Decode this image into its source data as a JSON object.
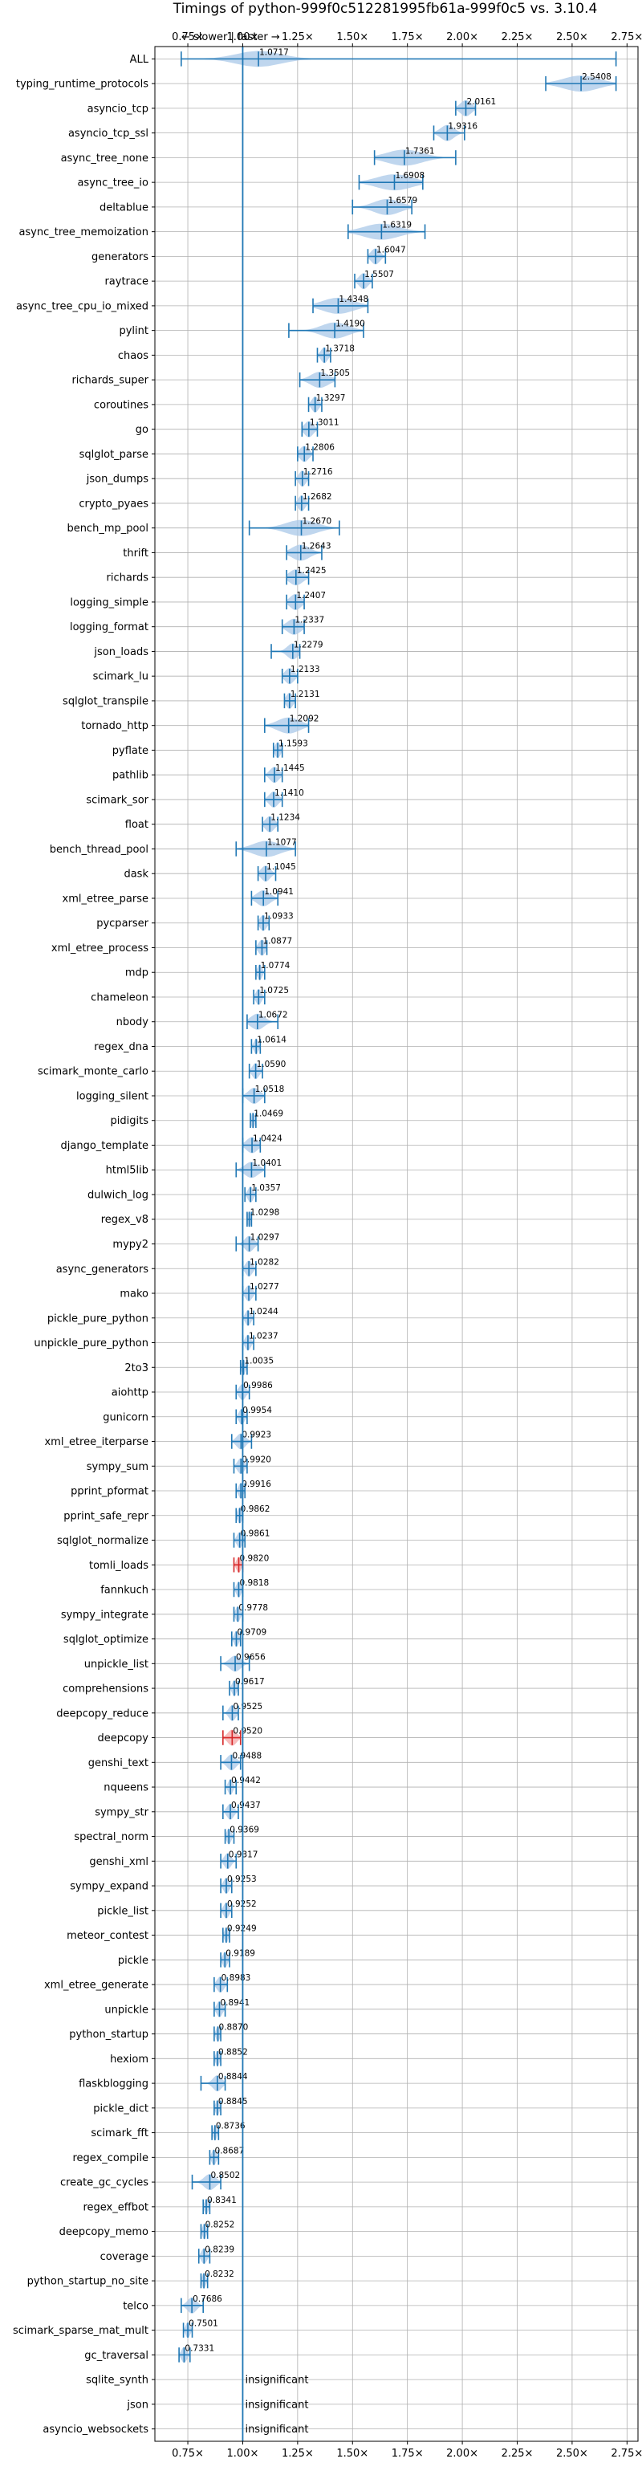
{
  "chart_data": {
    "type": "violin",
    "title": "Timings of python-999f0c512281995fb61a-999f0c5 vs. 3.10.4",
    "direction_note": "← slower | faster →",
    "xlim": [
      0.6,
      2.8
    ],
    "xticks": [
      0.75,
      1.0,
      1.25,
      1.5,
      1.75,
      2.0,
      2.25,
      2.5,
      2.75
    ],
    "xtick_labels": [
      "0.75×",
      "1.00×",
      "1.25×",
      "1.50×",
      "1.75×",
      "2.00×",
      "2.25×",
      "2.50×",
      "2.75×"
    ],
    "reference_line": 1.0,
    "insignificant_label": "insignificant",
    "benchmarks": [
      {
        "name": "ALL",
        "value": 1.0717,
        "min": 0.72,
        "max": 2.7,
        "spread": 0.1,
        "significant": true,
        "slower": false
      },
      {
        "name": "typing_runtime_protocols",
        "value": 2.5408,
        "min": 2.38,
        "max": 2.7,
        "spread": 0.08,
        "significant": true,
        "slower": false
      },
      {
        "name": "asyncio_tcp",
        "value": 2.0161,
        "min": 1.97,
        "max": 2.06,
        "spread": 0.025,
        "significant": true,
        "slower": false
      },
      {
        "name": "asyncio_tcp_ssl",
        "value": 1.9316,
        "min": 1.87,
        "max": 2.01,
        "spread": 0.03,
        "significant": true,
        "slower": false
      },
      {
        "name": "async_tree_none",
        "value": 1.7361,
        "min": 1.6,
        "max": 1.97,
        "spread": 0.08,
        "significant": true,
        "slower": false
      },
      {
        "name": "async_tree_io",
        "value": 1.6908,
        "min": 1.53,
        "max": 1.82,
        "spread": 0.08,
        "significant": true,
        "slower": false
      },
      {
        "name": "deltablue",
        "value": 1.6579,
        "min": 1.5,
        "max": 1.77,
        "spread": 0.06,
        "significant": true,
        "slower": false
      },
      {
        "name": "async_tree_memoization",
        "value": 1.6319,
        "min": 1.48,
        "max": 1.83,
        "spread": 0.08,
        "significant": true,
        "slower": false
      },
      {
        "name": "generators",
        "value": 1.6047,
        "min": 1.57,
        "max": 1.65,
        "spread": 0.02,
        "significant": true,
        "slower": false
      },
      {
        "name": "raytrace",
        "value": 1.5507,
        "min": 1.51,
        "max": 1.59,
        "spread": 0.02,
        "significant": true,
        "slower": false
      },
      {
        "name": "async_tree_cpu_io_mixed",
        "value": 1.4348,
        "min": 1.32,
        "max": 1.57,
        "spread": 0.07,
        "significant": true,
        "slower": false
      },
      {
        "name": "pylint",
        "value": 1.419,
        "min": 1.21,
        "max": 1.55,
        "spread": 0.06,
        "significant": true,
        "slower": false
      },
      {
        "name": "chaos",
        "value": 1.3718,
        "min": 1.34,
        "max": 1.4,
        "spread": 0.015,
        "significant": true,
        "slower": false
      },
      {
        "name": "richards_super",
        "value": 1.3505,
        "min": 1.26,
        "max": 1.42,
        "spread": 0.04,
        "significant": true,
        "slower": false
      },
      {
        "name": "coroutines",
        "value": 1.3297,
        "min": 1.3,
        "max": 1.36,
        "spread": 0.015,
        "significant": true,
        "slower": false
      },
      {
        "name": "go",
        "value": 1.3011,
        "min": 1.27,
        "max": 1.34,
        "spread": 0.02,
        "significant": true,
        "slower": false
      },
      {
        "name": "sqlglot_parse",
        "value": 1.2806,
        "min": 1.25,
        "max": 1.32,
        "spread": 0.02,
        "significant": true,
        "slower": false
      },
      {
        "name": "json_dumps",
        "value": 1.2716,
        "min": 1.24,
        "max": 1.3,
        "spread": 0.015,
        "significant": true,
        "slower": false
      },
      {
        "name": "crypto_pyaes",
        "value": 1.2682,
        "min": 1.24,
        "max": 1.3,
        "spread": 0.015,
        "significant": true,
        "slower": false
      },
      {
        "name": "bench_mp_pool",
        "value": 1.267,
        "min": 1.03,
        "max": 1.44,
        "spread": 0.07,
        "significant": true,
        "slower": false
      },
      {
        "name": "thrift",
        "value": 1.2643,
        "min": 1.2,
        "max": 1.36,
        "spread": 0.04,
        "significant": true,
        "slower": false
      },
      {
        "name": "richards",
        "value": 1.2425,
        "min": 1.2,
        "max": 1.3,
        "spread": 0.03,
        "significant": true,
        "slower": false
      },
      {
        "name": "logging_simple",
        "value": 1.2407,
        "min": 1.2,
        "max": 1.28,
        "spread": 0.025,
        "significant": true,
        "slower": false
      },
      {
        "name": "logging_format",
        "value": 1.2337,
        "min": 1.18,
        "max": 1.28,
        "spread": 0.03,
        "significant": true,
        "slower": false
      },
      {
        "name": "json_loads",
        "value": 1.2279,
        "min": 1.13,
        "max": 1.26,
        "spread": 0.025,
        "significant": true,
        "slower": false
      },
      {
        "name": "scimark_lu",
        "value": 1.2133,
        "min": 1.18,
        "max": 1.25,
        "spread": 0.02,
        "significant": true,
        "slower": false
      },
      {
        "name": "sqlglot_transpile",
        "value": 1.2131,
        "min": 1.19,
        "max": 1.24,
        "spread": 0.015,
        "significant": true,
        "slower": false
      },
      {
        "name": "tornado_http",
        "value": 1.2092,
        "min": 1.1,
        "max": 1.3,
        "spread": 0.05,
        "significant": true,
        "slower": false
      },
      {
        "name": "pyflate",
        "value": 1.1593,
        "min": 1.14,
        "max": 1.18,
        "spread": 0.012,
        "significant": true,
        "slower": false
      },
      {
        "name": "pathlib",
        "value": 1.1445,
        "min": 1.1,
        "max": 1.18,
        "spread": 0.02,
        "significant": true,
        "slower": false
      },
      {
        "name": "scimark_sor",
        "value": 1.141,
        "min": 1.1,
        "max": 1.18,
        "spread": 0.02,
        "significant": true,
        "slower": false
      },
      {
        "name": "float",
        "value": 1.1234,
        "min": 1.09,
        "max": 1.16,
        "spread": 0.02,
        "significant": true,
        "slower": false
      },
      {
        "name": "bench_thread_pool",
        "value": 1.1077,
        "min": 0.97,
        "max": 1.24,
        "spread": 0.06,
        "significant": true,
        "slower": false
      },
      {
        "name": "dask",
        "value": 1.1045,
        "min": 1.07,
        "max": 1.15,
        "spread": 0.02,
        "significant": true,
        "slower": false
      },
      {
        "name": "xml_etree_parse",
        "value": 1.0941,
        "min": 1.04,
        "max": 1.16,
        "spread": 0.03,
        "significant": true,
        "slower": false
      },
      {
        "name": "pycparser",
        "value": 1.0933,
        "min": 1.07,
        "max": 1.12,
        "spread": 0.015,
        "significant": true,
        "slower": false
      },
      {
        "name": "xml_etree_process",
        "value": 1.0877,
        "min": 1.06,
        "max": 1.11,
        "spread": 0.015,
        "significant": true,
        "slower": false
      },
      {
        "name": "mdp",
        "value": 1.0774,
        "min": 1.06,
        "max": 1.1,
        "spread": 0.01,
        "significant": true,
        "slower": false
      },
      {
        "name": "chameleon",
        "value": 1.0725,
        "min": 1.05,
        "max": 1.1,
        "spread": 0.012,
        "significant": true,
        "slower": false
      },
      {
        "name": "nbody",
        "value": 1.0672,
        "min": 1.02,
        "max": 1.16,
        "spread": 0.03,
        "significant": true,
        "slower": false
      },
      {
        "name": "regex_dna",
        "value": 1.0614,
        "min": 1.04,
        "max": 1.08,
        "spread": 0.01,
        "significant": true,
        "slower": false
      },
      {
        "name": "scimark_monte_carlo",
        "value": 1.059,
        "min": 1.03,
        "max": 1.09,
        "spread": 0.015,
        "significant": true,
        "slower": false
      },
      {
        "name": "logging_silent",
        "value": 1.0518,
        "min": 1.0,
        "max": 1.1,
        "spread": 0.025,
        "significant": true,
        "slower": false
      },
      {
        "name": "pidigits",
        "value": 1.0469,
        "min": 1.035,
        "max": 1.06,
        "spread": 0.008,
        "significant": true,
        "slower": false
      },
      {
        "name": "django_template",
        "value": 1.0424,
        "min": 1.0,
        "max": 1.08,
        "spread": 0.025,
        "significant": true,
        "slower": false
      },
      {
        "name": "html5lib",
        "value": 1.0401,
        "min": 0.97,
        "max": 1.1,
        "spread": 0.03,
        "significant": true,
        "slower": false
      },
      {
        "name": "dulwich_log",
        "value": 1.0357,
        "min": 1.01,
        "max": 1.06,
        "spread": 0.012,
        "significant": true,
        "slower": false
      },
      {
        "name": "regex_v8",
        "value": 1.0298,
        "min": 1.02,
        "max": 1.04,
        "spread": 0.008,
        "significant": true,
        "slower": false
      },
      {
        "name": "mypy2",
        "value": 1.0297,
        "min": 0.97,
        "max": 1.07,
        "spread": 0.02,
        "significant": true,
        "slower": false
      },
      {
        "name": "async_generators",
        "value": 1.0282,
        "min": 1.0,
        "max": 1.06,
        "spread": 0.015,
        "significant": true,
        "slower": false
      },
      {
        "name": "mako",
        "value": 1.0277,
        "min": 1.0,
        "max": 1.06,
        "spread": 0.015,
        "significant": true,
        "slower": false
      },
      {
        "name": "pickle_pure_python",
        "value": 1.0244,
        "min": 1.0,
        "max": 1.05,
        "spread": 0.012,
        "significant": true,
        "slower": false
      },
      {
        "name": "unpickle_pure_python",
        "value": 1.0237,
        "min": 1.0,
        "max": 1.05,
        "spread": 0.012,
        "significant": true,
        "slower": false
      },
      {
        "name": "2to3",
        "value": 1.0035,
        "min": 0.99,
        "max": 1.02,
        "spread": 0.008,
        "significant": true,
        "slower": false
      },
      {
        "name": "aiohttp",
        "value": 0.9986,
        "min": 0.97,
        "max": 1.03,
        "spread": 0.015,
        "significant": true,
        "slower": false
      },
      {
        "name": "gunicorn",
        "value": 0.9954,
        "min": 0.97,
        "max": 1.02,
        "spread": 0.012,
        "significant": true,
        "slower": false
      },
      {
        "name": "xml_etree_iterparse",
        "value": 0.9923,
        "min": 0.95,
        "max": 1.04,
        "spread": 0.02,
        "significant": true,
        "slower": false
      },
      {
        "name": "sympy_sum",
        "value": 0.992,
        "min": 0.96,
        "max": 1.02,
        "spread": 0.015,
        "significant": true,
        "slower": false
      },
      {
        "name": "pprint_pformat",
        "value": 0.9916,
        "min": 0.97,
        "max": 1.01,
        "spread": 0.01,
        "significant": true,
        "slower": false
      },
      {
        "name": "pprint_safe_repr",
        "value": 0.9862,
        "min": 0.97,
        "max": 1.0,
        "spread": 0.01,
        "significant": true,
        "slower": false
      },
      {
        "name": "sqlglot_normalize",
        "value": 0.9861,
        "min": 0.96,
        "max": 1.01,
        "spread": 0.012,
        "significant": true,
        "slower": false
      },
      {
        "name": "tomli_loads",
        "value": 0.982,
        "min": 0.96,
        "max": 1.0,
        "spread": 0.01,
        "significant": true,
        "slower": true
      },
      {
        "name": "fannkuch",
        "value": 0.9818,
        "min": 0.96,
        "max": 1.0,
        "spread": 0.01,
        "significant": true,
        "slower": false
      },
      {
        "name": "sympy_integrate",
        "value": 0.9778,
        "min": 0.96,
        "max": 1.0,
        "spread": 0.01,
        "significant": true,
        "slower": false
      },
      {
        "name": "sqlglot_optimize",
        "value": 0.9709,
        "min": 0.95,
        "max": 0.99,
        "spread": 0.01,
        "significant": true,
        "slower": false
      },
      {
        "name": "unpickle_list",
        "value": 0.9656,
        "min": 0.9,
        "max": 1.03,
        "spread": 0.025,
        "significant": true,
        "slower": false
      },
      {
        "name": "comprehensions",
        "value": 0.9617,
        "min": 0.94,
        "max": 0.98,
        "spread": 0.01,
        "significant": true,
        "slower": false
      },
      {
        "name": "deepcopy_reduce",
        "value": 0.9525,
        "min": 0.91,
        "max": 0.98,
        "spread": 0.015,
        "significant": true,
        "slower": false
      },
      {
        "name": "deepcopy",
        "value": 0.952,
        "min": 0.91,
        "max": 0.99,
        "spread": 0.02,
        "significant": true,
        "slower": true
      },
      {
        "name": "genshi_text",
        "value": 0.9488,
        "min": 0.9,
        "max": 0.99,
        "spread": 0.02,
        "significant": true,
        "slower": false
      },
      {
        "name": "nqueens",
        "value": 0.9442,
        "min": 0.92,
        "max": 0.97,
        "spread": 0.01,
        "significant": true,
        "slower": false
      },
      {
        "name": "sympy_str",
        "value": 0.9437,
        "min": 0.91,
        "max": 0.98,
        "spread": 0.015,
        "significant": true,
        "slower": false
      },
      {
        "name": "spectral_norm",
        "value": 0.9369,
        "min": 0.92,
        "max": 0.96,
        "spread": 0.01,
        "significant": true,
        "slower": false
      },
      {
        "name": "genshi_xml",
        "value": 0.9317,
        "min": 0.9,
        "max": 0.97,
        "spread": 0.015,
        "significant": true,
        "slower": false
      },
      {
        "name": "sympy_expand",
        "value": 0.9253,
        "min": 0.9,
        "max": 0.95,
        "spread": 0.012,
        "significant": true,
        "slower": false
      },
      {
        "name": "pickle_list",
        "value": 0.9252,
        "min": 0.9,
        "max": 0.95,
        "spread": 0.012,
        "significant": true,
        "slower": false
      },
      {
        "name": "meteor_contest",
        "value": 0.9249,
        "min": 0.91,
        "max": 0.94,
        "spread": 0.008,
        "significant": true,
        "slower": false
      },
      {
        "name": "pickle",
        "value": 0.9189,
        "min": 0.9,
        "max": 0.94,
        "spread": 0.01,
        "significant": true,
        "slower": false
      },
      {
        "name": "xml_etree_generate",
        "value": 0.8983,
        "min": 0.87,
        "max": 0.93,
        "spread": 0.015,
        "significant": true,
        "slower": false
      },
      {
        "name": "unpickle",
        "value": 0.8941,
        "min": 0.87,
        "max": 0.92,
        "spread": 0.012,
        "significant": true,
        "slower": false
      },
      {
        "name": "python_startup",
        "value": 0.887,
        "min": 0.87,
        "max": 0.9,
        "spread": 0.008,
        "significant": true,
        "slower": false
      },
      {
        "name": "hexiom",
        "value": 0.8852,
        "min": 0.87,
        "max": 0.9,
        "spread": 0.008,
        "significant": true,
        "slower": false
      },
      {
        "name": "flaskblogging",
        "value": 0.8844,
        "min": 0.81,
        "max": 0.92,
        "spread": 0.02,
        "significant": true,
        "slower": false
      },
      {
        "name": "pickle_dict",
        "value": 0.8845,
        "min": 0.87,
        "max": 0.9,
        "spread": 0.008,
        "significant": true,
        "slower": false
      },
      {
        "name": "scimark_fft",
        "value": 0.8736,
        "min": 0.86,
        "max": 0.89,
        "spread": 0.008,
        "significant": true,
        "slower": false
      },
      {
        "name": "regex_compile",
        "value": 0.8687,
        "min": 0.85,
        "max": 0.89,
        "spread": 0.01,
        "significant": true,
        "slower": false
      },
      {
        "name": "create_gc_cycles",
        "value": 0.8502,
        "min": 0.77,
        "max": 0.9,
        "spread": 0.025,
        "significant": true,
        "slower": false
      },
      {
        "name": "regex_effbot",
        "value": 0.8341,
        "min": 0.82,
        "max": 0.85,
        "spread": 0.008,
        "significant": true,
        "slower": false
      },
      {
        "name": "deepcopy_memo",
        "value": 0.8252,
        "min": 0.81,
        "max": 0.84,
        "spread": 0.008,
        "significant": true,
        "slower": false
      },
      {
        "name": "coverage",
        "value": 0.8239,
        "min": 0.8,
        "max": 0.85,
        "spread": 0.012,
        "significant": true,
        "slower": false
      },
      {
        "name": "python_startup_no_site",
        "value": 0.8232,
        "min": 0.81,
        "max": 0.84,
        "spread": 0.008,
        "significant": true,
        "slower": false
      },
      {
        "name": "telco",
        "value": 0.7686,
        "min": 0.72,
        "max": 0.82,
        "spread": 0.02,
        "significant": true,
        "slower": false
      },
      {
        "name": "scimark_sparse_mat_mult",
        "value": 0.7501,
        "min": 0.73,
        "max": 0.77,
        "spread": 0.01,
        "significant": true,
        "slower": false
      },
      {
        "name": "gc_traversal",
        "value": 0.7331,
        "min": 0.71,
        "max": 0.76,
        "spread": 0.012,
        "significant": true,
        "slower": false
      },
      {
        "name": "sqlite_synth",
        "value": null,
        "significant": false
      },
      {
        "name": "json",
        "value": null,
        "significant": false
      },
      {
        "name": "asyncio_websockets",
        "value": null,
        "significant": false
      }
    ],
    "colors": {
      "faster": "#1f77b4",
      "faster_fill": "#a9c8e8",
      "slower": "#d62728",
      "slower_fill": "#f4a6a6",
      "grid": "#b0b0b0",
      "text": "#000000"
    }
  }
}
